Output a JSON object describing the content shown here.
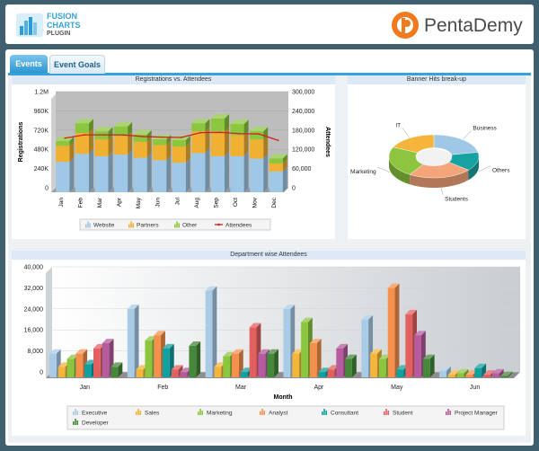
{
  "header": {
    "left_logo": {
      "line1": "FUSION",
      "line2": "CHARTS",
      "line3": "PLUGIN"
    },
    "right_logo": {
      "text": "PentaDemy"
    }
  },
  "tabs": [
    {
      "label": "Events",
      "active": true
    },
    {
      "label": "Event Goals",
      "active": false
    }
  ],
  "colors": {
    "website": "#9fc8e6",
    "partners": "#f0b132",
    "other": "#8cc63f",
    "attendees": "#cc2222",
    "executive": "#a9cbe6",
    "sales": "#f5b53a",
    "marketing": "#8cc63f",
    "analyst": "#f5914d",
    "consultant": "#10a0a0",
    "student": "#e36060",
    "project_manager": "#b65b9d",
    "developer": "#46883a",
    "tab_active": "#36a2dc"
  },
  "chart_data": [
    {
      "type": "bar",
      "stacked": true,
      "title": "Registrations vs. Attendees",
      "categories": [
        "Jan",
        "Feb",
        "Mar",
        "Apr",
        "May",
        "Jun",
        "Jul",
        "Aug",
        "Sep",
        "Oct",
        "Nov",
        "Dec"
      ],
      "series": [
        {
          "name": "Website",
          "values": [
            380000,
            480000,
            450000,
            470000,
            430000,
            400000,
            370000,
            490000,
            450000,
            450000,
            420000,
            260000
          ]
        },
        {
          "name": "Partners",
          "values": [
            200000,
            260000,
            210000,
            230000,
            200000,
            190000,
            200000,
            270000,
            310000,
            260000,
            240000,
            100000
          ]
        },
        {
          "name": "Other",
          "values": [
            60000,
            120000,
            100000,
            120000,
            90000,
            70000,
            80000,
            100000,
            160000,
            140000,
            100000,
            60000
          ]
        },
        {
          "name": "Attendees",
          "type": "line",
          "axis": "secondary",
          "values": [
            155000,
            165000,
            165000,
            165000,
            160000,
            158000,
            157000,
            172000,
            173000,
            169000,
            168000,
            148000
          ]
        }
      ],
      "ylabel": "Registrations",
      "y2label": "Attendees",
      "ylim": [
        0,
        1200000
      ],
      "y2lim": [
        0,
        300000
      ],
      "yticks": [
        "0",
        "240K",
        "480K",
        "720K",
        "960K",
        "1.2M"
      ],
      "y2ticks": [
        "0",
        "60,000",
        "120,000",
        "180,000",
        "240,000",
        "300,000"
      ],
      "legend": [
        "Website",
        "Partners",
        "Other",
        "Attendees"
      ],
      "legend_position": "bottom"
    },
    {
      "type": "pie",
      "doughnut": true,
      "title": "Banner Hits break-up",
      "slices": [
        {
          "label": "Business",
          "value": 22,
          "color": "#9fc8e6"
        },
        {
          "label": "Others",
          "value": 14,
          "color": "#17a2a2"
        },
        {
          "label": "Students",
          "value": 23,
          "color": "#f5a57a"
        },
        {
          "label": "Marketing",
          "value": 23,
          "color": "#8cc63f"
        },
        {
          "label": "IT",
          "value": 18,
          "color": "#f5b53a"
        }
      ]
    },
    {
      "type": "bar",
      "title": "Department wise Attendees",
      "xlabel": "Month",
      "categories": [
        "Jan",
        "Feb",
        "Mar",
        "Apr",
        "May",
        "Jun"
      ],
      "series": [
        {
          "name": "Executive",
          "values": [
            9000,
            26000,
            33000,
            26000,
            22000,
            2500
          ]
        },
        {
          "name": "Sales",
          "values": [
            4000,
            3000,
            4000,
            9000,
            9000,
            1000
          ]
        },
        {
          "name": "Marketing",
          "values": [
            7000,
            14000,
            8000,
            21000,
            7000,
            1500
          ]
        },
        {
          "name": "Analyst",
          "values": [
            9000,
            16000,
            9000,
            13000,
            34000,
            1000
          ]
        },
        {
          "name": "Consultant",
          "values": [
            5000,
            11000,
            2000,
            2000,
            3000,
            3500
          ]
        },
        {
          "name": "Student",
          "values": [
            11000,
            3000,
            19000,
            3000,
            24000,
            1000
          ]
        },
        {
          "name": "Project Manager",
          "values": [
            13000,
            2000,
            9000,
            11000,
            16000,
            1500
          ]
        },
        {
          "name": "Developer",
          "values": [
            4000,
            12000,
            9000,
            7000,
            7000,
            500
          ]
        }
      ],
      "ylim": [
        0,
        40000
      ],
      "yticks": [
        "0",
        "8,000",
        "16,000",
        "24,000",
        "32,000",
        "40,000"
      ],
      "legend": [
        "Executive",
        "Sales",
        "Marketing",
        "Analyst",
        "Consultant",
        "Student",
        "Project Manager",
        "Developer"
      ],
      "legend_position": "bottom"
    }
  ]
}
